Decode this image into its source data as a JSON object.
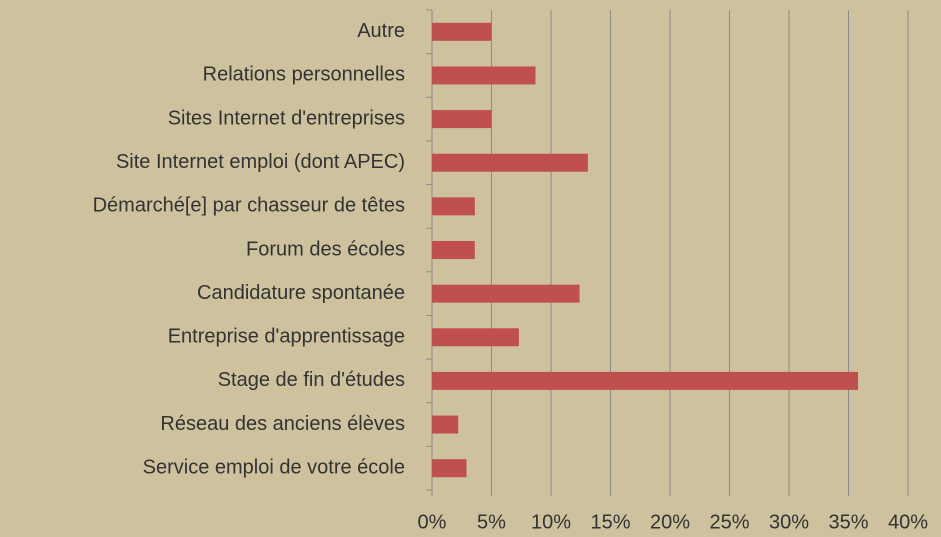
{
  "chart_data": {
    "type": "barh",
    "categories": [
      "Autre",
      "Relations personnelles",
      "Sites Internet d'entreprises",
      "Site Internet emploi (dont APEC)",
      "Démarché[e] par chasseur de têtes",
      "Forum des écoles",
      "Candidature spontanée",
      "Entreprise d'apprentissage",
      "Stage de fin d'études",
      "Réseau des anciens élèves",
      "Service emploi de votre école"
    ],
    "values": [
      5,
      8.7,
      5,
      13.1,
      3.6,
      3.6,
      12.4,
      7.3,
      35.8,
      2.2,
      2.9
    ],
    "color": "#c0504d",
    "xlim": [
      0,
      40
    ],
    "xticks": [
      {
        "value": 0,
        "label": "0%"
      },
      {
        "value": 5,
        "label": "5%"
      },
      {
        "value": 10,
        "label": "10%"
      },
      {
        "value": 15,
        "label": "15%"
      },
      {
        "value": 20,
        "label": "20%"
      },
      {
        "value": 25,
        "label": "25%"
      },
      {
        "value": 30,
        "label": "30%"
      },
      {
        "value": 35,
        "label": "35%"
      },
      {
        "value": 40,
        "label": "40%"
      }
    ],
    "grid": true
  }
}
